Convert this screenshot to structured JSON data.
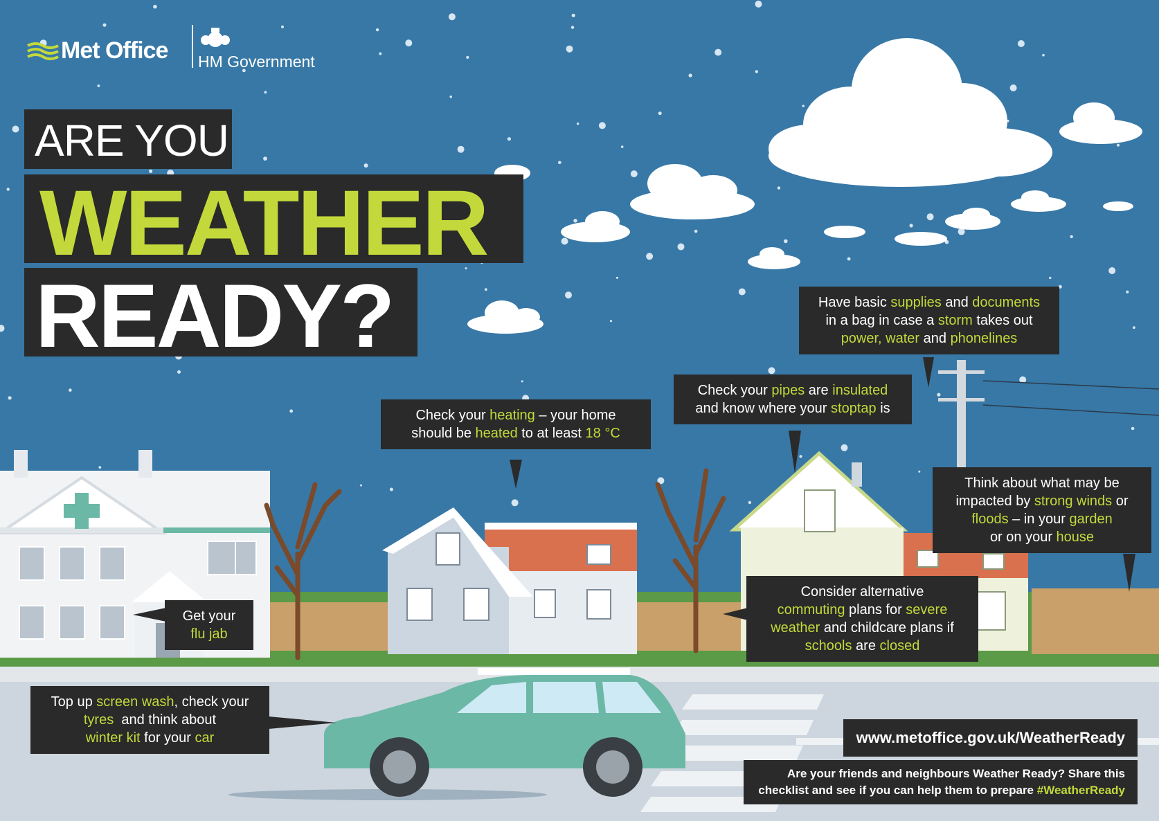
{
  "branding": {
    "met_office": "Met Office",
    "hm_government": "HM Government",
    "crest": "Royal coat of arms"
  },
  "title": {
    "line1": "ARE YOU",
    "line2": "WEATHER",
    "line3": "READY?"
  },
  "bubbles": {
    "heating": [
      {
        "t": "Check your "
      },
      {
        "t": "heating",
        "hl": true
      },
      {
        "t": " – your home"
      },
      {
        "br": true
      },
      {
        "t": "should be "
      },
      {
        "t": "heated",
        "hl": true
      },
      {
        "t": " to at least "
      },
      {
        "t": "18 °C",
        "hl": true
      }
    ],
    "pipes": [
      {
        "t": "Check your "
      },
      {
        "t": "pipes",
        "hl": true
      },
      {
        "t": " are "
      },
      {
        "t": "insulated",
        "hl": true
      },
      {
        "br": true
      },
      {
        "t": "and know where your "
      },
      {
        "t": "stoptap",
        "hl": true
      },
      {
        "t": " is"
      }
    ],
    "supplies": [
      {
        "t": "Have basic "
      },
      {
        "t": "supplies",
        "hl": true
      },
      {
        "t": " and "
      },
      {
        "t": "documents",
        "hl": true
      },
      {
        "br": true
      },
      {
        "t": "in a bag in case a "
      },
      {
        "t": "storm",
        "hl": true
      },
      {
        "t": " takes out"
      },
      {
        "br": true
      },
      {
        "t": "power, water",
        "hl": true
      },
      {
        "t": " and "
      },
      {
        "t": "phonelines",
        "hl": true
      }
    ],
    "winds": [
      {
        "t": "Think about what may be"
      },
      {
        "br": true
      },
      {
        "t": "impacted by "
      },
      {
        "t": "strong winds",
        "hl": true
      },
      {
        "t": " or"
      },
      {
        "br": true
      },
      {
        "t": "floods",
        "hl": true
      },
      {
        "t": " – in your "
      },
      {
        "t": "garden",
        "hl": true
      },
      {
        "br": true
      },
      {
        "t": "or on your "
      },
      {
        "t": "house",
        "hl": true
      }
    ],
    "commuting": [
      {
        "t": "Consider alternative"
      },
      {
        "br": true
      },
      {
        "t": "commuting",
        "hl": true
      },
      {
        "t": " plans for "
      },
      {
        "t": "severe",
        "hl": true
      },
      {
        "br": true
      },
      {
        "t": "weather",
        "hl": true
      },
      {
        "t": " and childcare plans if"
      },
      {
        "br": true
      },
      {
        "t": "schools",
        "hl": true
      },
      {
        "t": " are "
      },
      {
        "t": "closed",
        "hl": true
      }
    ],
    "flu": [
      {
        "t": "Get your"
      },
      {
        "br": true
      },
      {
        "t": "flu jab",
        "hl": true
      }
    ],
    "car": [
      {
        "t": "Top up "
      },
      {
        "t": "screen wash",
        "hl": true
      },
      {
        "t": ", check your"
      },
      {
        "br": true
      },
      {
        "t": "tyres",
        "hl": true
      },
      {
        "t": "  and think about"
      },
      {
        "br": true
      },
      {
        "t": "winter kit",
        "hl": true
      },
      {
        "t": " for your "
      },
      {
        "t": "car",
        "hl": true
      }
    ],
    "share": [
      {
        "t": "Are your friends and neighbours Weather Ready? Share this"
      },
      {
        "br": true
      },
      {
        "t": "checklist and see if you can help them to prepare "
      },
      {
        "t": "#WeatherReady",
        "hl": true
      }
    ]
  },
  "url": "www.metoffice.gov.uk/WeatherReady",
  "colors": {
    "sky": "#3878a6",
    "accent_lime": "#c3d93b",
    "box_dark": "#2a2a2a",
    "car_teal": "#6cb8a6",
    "grass": "#5b9a46",
    "road": "#cdd6de"
  }
}
